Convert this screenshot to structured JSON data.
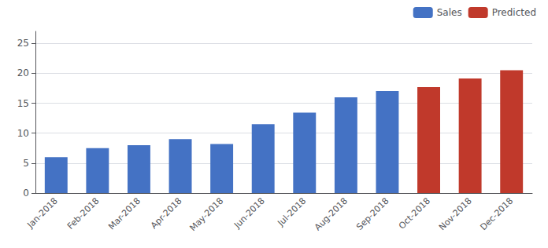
{
  "chart_data": {
    "type": "bar",
    "categories": [
      "Jan-2018",
      "Feb-2018",
      "Mar-2018",
      "Apr-2018",
      "May-2018",
      "Jun-2018",
      "Jul-2018",
      "Aug-2018",
      "Sep-2018",
      "Oct-2018",
      "Nov-2018",
      "Dec-2018"
    ],
    "series": [
      {
        "name": "Sales",
        "color": "#4472C4",
        "values": [
          6,
          7.5,
          8,
          9,
          8.2,
          11.5,
          13.45,
          16,
          17.05,
          null,
          null,
          null
        ]
      },
      {
        "name": "Predicted",
        "color": "#C0392B",
        "values": [
          null,
          null,
          null,
          null,
          null,
          null,
          null,
          null,
          null,
          17.71,
          19.13,
          20.5
        ]
      }
    ],
    "ylim": [
      0,
      27
    ],
    "yticks": [
      0,
      5,
      10,
      15,
      20,
      25
    ],
    "grid": true,
    "legend": "upper right"
  }
}
